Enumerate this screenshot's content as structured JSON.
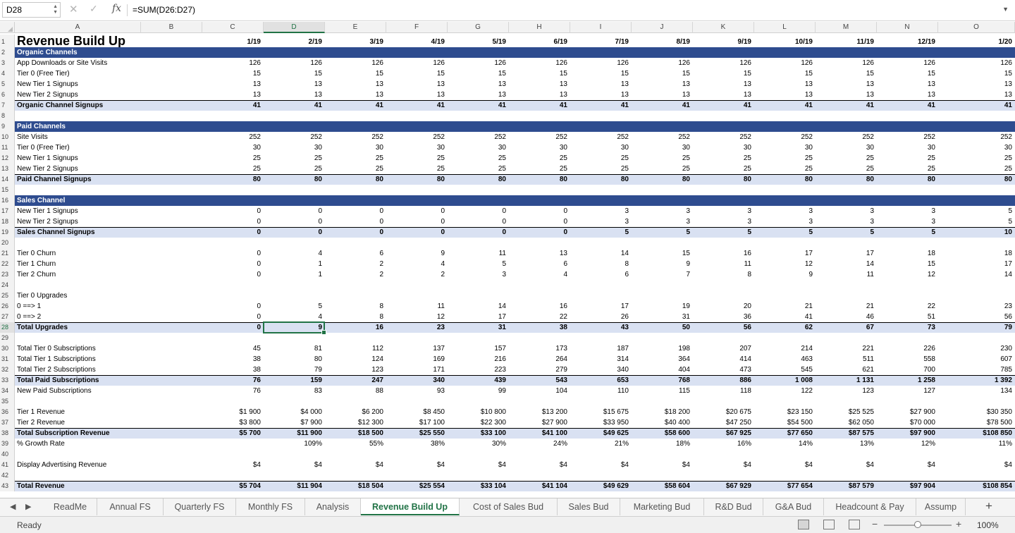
{
  "formula_bar": {
    "cell_ref": "D28",
    "formula": "=SUM(D26:D27)"
  },
  "columns": [
    "A",
    "B",
    "C",
    "D",
    "E",
    "F",
    "G",
    "H",
    "I",
    "J",
    "K",
    "L",
    "M",
    "N",
    "O"
  ],
  "selected_column": "D",
  "selected_row": 28,
  "rows": [
    {
      "n": "1",
      "type": "title",
      "label": "Revenue Build Up",
      "values": [
        "1/19",
        "2/19",
        "3/19",
        "4/19",
        "5/19",
        "6/19",
        "7/19",
        "8/19",
        "9/19",
        "10/19",
        "11/19",
        "12/19",
        "1/20"
      ]
    },
    {
      "n": "2",
      "type": "sect",
      "label": "Organic Channels",
      "values": []
    },
    {
      "n": "3",
      "type": "data",
      "label": "App Downloads or Site Visits",
      "values": [
        "126",
        "126",
        "126",
        "126",
        "126",
        "126",
        "126",
        "126",
        "126",
        "126",
        "126",
        "126",
        "126"
      ]
    },
    {
      "n": "4",
      "type": "data",
      "label": "Tier 0 (Free Tier)",
      "values": [
        "15",
        "15",
        "15",
        "15",
        "15",
        "15",
        "15",
        "15",
        "15",
        "15",
        "15",
        "15",
        "15"
      ]
    },
    {
      "n": "5",
      "type": "data",
      "label": "New Tier 1 Signups",
      "values": [
        "13",
        "13",
        "13",
        "13",
        "13",
        "13",
        "13",
        "13",
        "13",
        "13",
        "13",
        "13",
        "13"
      ]
    },
    {
      "n": "6",
      "type": "data",
      "label": "New Tier 2 Signups",
      "values": [
        "13",
        "13",
        "13",
        "13",
        "13",
        "13",
        "13",
        "13",
        "13",
        "13",
        "13",
        "13",
        "13"
      ]
    },
    {
      "n": "7",
      "type": "total",
      "label": "Organic Channel Signups",
      "values": [
        "41",
        "41",
        "41",
        "41",
        "41",
        "41",
        "41",
        "41",
        "41",
        "41",
        "41",
        "41",
        "41"
      ]
    },
    {
      "n": "8",
      "type": "blank",
      "label": "",
      "values": []
    },
    {
      "n": "9",
      "type": "sect",
      "label": "Paid Channels",
      "values": []
    },
    {
      "n": "10",
      "type": "data",
      "label": "Site Visits",
      "values": [
        "252",
        "252",
        "252",
        "252",
        "252",
        "252",
        "252",
        "252",
        "252",
        "252",
        "252",
        "252",
        "252"
      ]
    },
    {
      "n": "11",
      "type": "data",
      "label": "Tier 0 (Free Tier)",
      "values": [
        "30",
        "30",
        "30",
        "30",
        "30",
        "30",
        "30",
        "30",
        "30",
        "30",
        "30",
        "30",
        "30"
      ]
    },
    {
      "n": "12",
      "type": "data",
      "label": "New Tier 1 Signups",
      "values": [
        "25",
        "25",
        "25",
        "25",
        "25",
        "25",
        "25",
        "25",
        "25",
        "25",
        "25",
        "25",
        "25"
      ]
    },
    {
      "n": "13",
      "type": "data",
      "label": "New Tier 2 Signups",
      "values": [
        "25",
        "25",
        "25",
        "25",
        "25",
        "25",
        "25",
        "25",
        "25",
        "25",
        "25",
        "25",
        "25"
      ]
    },
    {
      "n": "14",
      "type": "total",
      "label": "Paid Channel Signups",
      "values": [
        "80",
        "80",
        "80",
        "80",
        "80",
        "80",
        "80",
        "80",
        "80",
        "80",
        "80",
        "80",
        "80"
      ]
    },
    {
      "n": "15",
      "type": "blank",
      "label": "",
      "values": []
    },
    {
      "n": "16",
      "type": "sect",
      "label": "Sales Channel",
      "values": []
    },
    {
      "n": "17",
      "type": "data",
      "label": "New Tier 1 Signups",
      "values": [
        "0",
        "0",
        "0",
        "0",
        "0",
        "0",
        "3",
        "3",
        "3",
        "3",
        "3",
        "3",
        "5"
      ]
    },
    {
      "n": "18",
      "type": "data",
      "label": "New Tier 2 Signups",
      "values": [
        "0",
        "0",
        "0",
        "0",
        "0",
        "0",
        "3",
        "3",
        "3",
        "3",
        "3",
        "3",
        "5"
      ]
    },
    {
      "n": "19",
      "type": "total",
      "label": "Sales Channel Signups",
      "values": [
        "0",
        "0",
        "0",
        "0",
        "0",
        "0",
        "5",
        "5",
        "5",
        "5",
        "5",
        "5",
        "10"
      ]
    },
    {
      "n": "20",
      "type": "blank",
      "label": "",
      "values": []
    },
    {
      "n": "21",
      "type": "data",
      "label": "Tier 0 Churn",
      "values": [
        "0",
        "4",
        "6",
        "9",
        "11",
        "13",
        "14",
        "15",
        "16",
        "17",
        "17",
        "18",
        "18"
      ]
    },
    {
      "n": "22",
      "type": "data",
      "label": "Tier 1 Churn",
      "values": [
        "0",
        "1",
        "2",
        "4",
        "5",
        "6",
        "8",
        "9",
        "11",
        "12",
        "14",
        "15",
        "17"
      ]
    },
    {
      "n": "23",
      "type": "data",
      "label": "Tier 2 Churn",
      "values": [
        "0",
        "1",
        "2",
        "2",
        "3",
        "4",
        "6",
        "7",
        "8",
        "9",
        "11",
        "12",
        "14"
      ]
    },
    {
      "n": "24",
      "type": "blank",
      "label": "",
      "values": []
    },
    {
      "n": "25",
      "type": "data",
      "label": "Tier 0 Upgrades",
      "values": []
    },
    {
      "n": "26",
      "type": "data",
      "label": "0 ==> 1",
      "values": [
        "0",
        "5",
        "8",
        "11",
        "14",
        "16",
        "17",
        "19",
        "20",
        "21",
        "21",
        "22",
        "23"
      ]
    },
    {
      "n": "27",
      "type": "data",
      "label": "0 ==> 2",
      "values": [
        "0",
        "4",
        "8",
        "12",
        "17",
        "22",
        "26",
        "31",
        "36",
        "41",
        "46",
        "51",
        "56"
      ]
    },
    {
      "n": "28",
      "type": "total",
      "label": "Total Upgrades",
      "values": [
        "0",
        "9",
        "16",
        "23",
        "31",
        "38",
        "43",
        "50",
        "56",
        "62",
        "67",
        "73",
        "79"
      ]
    },
    {
      "n": "29",
      "type": "blank",
      "label": "",
      "values": []
    },
    {
      "n": "30",
      "type": "data",
      "label": "Total Tier 0 Subscriptions",
      "values": [
        "45",
        "81",
        "112",
        "137",
        "157",
        "173",
        "187",
        "198",
        "207",
        "214",
        "221",
        "226",
        "230"
      ]
    },
    {
      "n": "31",
      "type": "data",
      "label": "Total Tier 1 Subscriptions",
      "values": [
        "38",
        "80",
        "124",
        "169",
        "216",
        "264",
        "314",
        "364",
        "414",
        "463",
        "511",
        "558",
        "607"
      ]
    },
    {
      "n": "32",
      "type": "data",
      "label": "Total Tier 2 Subscriptions",
      "values": [
        "38",
        "79",
        "123",
        "171",
        "223",
        "279",
        "340",
        "404",
        "473",
        "545",
        "621",
        "700",
        "785"
      ]
    },
    {
      "n": "33",
      "type": "total",
      "label": "Total Paid Subscriptions",
      "values": [
        "76",
        "159",
        "247",
        "340",
        "439",
        "543",
        "653",
        "768",
        "886",
        "1 008",
        "1 131",
        "1 258",
        "1 392"
      ]
    },
    {
      "n": "34",
      "type": "data",
      "label": "New Paid Subscriptions",
      "values": [
        "76",
        "83",
        "88",
        "93",
        "99",
        "104",
        "110",
        "115",
        "118",
        "122",
        "123",
        "127",
        "134"
      ]
    },
    {
      "n": "35",
      "type": "blank",
      "label": "",
      "values": []
    },
    {
      "n": "36",
      "type": "data",
      "label": "Tier 1 Revenue",
      "values": [
        "$1 900",
        "$4 000",
        "$6 200",
        "$8 450",
        "$10 800",
        "$13 200",
        "$15 675",
        "$18 200",
        "$20 675",
        "$23 150",
        "$25 525",
        "$27 900",
        "$30 350"
      ]
    },
    {
      "n": "37",
      "type": "data",
      "label": "Tier 2 Revenue",
      "values": [
        "$3 800",
        "$7 900",
        "$12 300",
        "$17 100",
        "$22 300",
        "$27 900",
        "$33 950",
        "$40 400",
        "$47 250",
        "$54 500",
        "$62 050",
        "$70 000",
        "$78 500"
      ]
    },
    {
      "n": "38",
      "type": "total",
      "label": "Total Subscription Revenue",
      "values": [
        "$5 700",
        "$11 900",
        "$18 500",
        "$25 550",
        "$33 100",
        "$41 100",
        "$49 625",
        "$58 600",
        "$67 925",
        "$77 650",
        "$87 575",
        "$97 900",
        "$108 850"
      ]
    },
    {
      "n": "39",
      "type": "data",
      "label": "% Growth Rate",
      "values": [
        "",
        "109%",
        "55%",
        "38%",
        "30%",
        "24%",
        "21%",
        "18%",
        "16%",
        "14%",
        "13%",
        "12%",
        "11%"
      ]
    },
    {
      "n": "40",
      "type": "blank",
      "label": "",
      "values": []
    },
    {
      "n": "41",
      "type": "data",
      "label": "Display Advertising Revenue",
      "values": [
        "$4",
        "$4",
        "$4",
        "$4",
        "$4",
        "$4",
        "$4",
        "$4",
        "$4",
        "$4",
        "$4",
        "$4",
        "$4"
      ]
    },
    {
      "n": "42",
      "type": "blank",
      "label": "",
      "values": []
    },
    {
      "n": "43",
      "type": "total",
      "label": "Total Revenue",
      "values": [
        "$5 704",
        "$11 904",
        "$18 504",
        "$25 554",
        "$33 104",
        "$41 104",
        "$49 629",
        "$58 604",
        "$67 929",
        "$77 654",
        "$87 579",
        "$97 904",
        "$108 854"
      ]
    }
  ],
  "sheet_tabs": [
    {
      "label": "ReadMe",
      "active": false
    },
    {
      "label": "Annual FS",
      "active": false
    },
    {
      "label": "Quarterly FS",
      "active": false
    },
    {
      "label": "Monthly FS",
      "active": false
    },
    {
      "label": "Analysis",
      "active": false
    },
    {
      "label": "Revenue Build Up",
      "active": true
    },
    {
      "label": "Cost of Sales Bud",
      "active": false
    },
    {
      "label": "Sales Bud",
      "active": false
    },
    {
      "label": "Marketing Bud",
      "active": false
    },
    {
      "label": "R&D Bud",
      "active": false
    },
    {
      "label": "G&A Bud",
      "active": false
    },
    {
      "label": "Headcount & Pay",
      "active": false
    },
    {
      "label": "Assump",
      "active": false
    }
  ],
  "status": {
    "ready": "Ready",
    "zoom": "100%",
    "zoom_level": 1.0
  },
  "icons": {
    "cancel": "cancel-x-icon",
    "confirm": "checkmark-icon",
    "function": "fx-icon"
  }
}
